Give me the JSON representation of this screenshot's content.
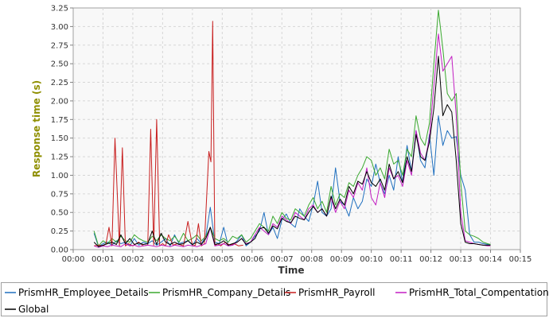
{
  "chart_data": {
    "type": "line",
    "title": "",
    "xlabel": "Time",
    "ylabel": "Response time (s)",
    "ylabel_color": "#8f8f00",
    "xlim": [
      0,
      15
    ],
    "ylim": [
      0,
      3.25
    ],
    "x_unit": "minutes",
    "x_ticks": [
      "00:00",
      "00:01",
      "00:02",
      "00:03",
      "00:04",
      "00:05",
      "00:06",
      "00:07",
      "00:08",
      "00:09",
      "00:10",
      "00:11",
      "00:12",
      "00:13",
      "00:14",
      "00:15"
    ],
    "y_ticks": [
      "0.00",
      "0.25",
      "0.50",
      "0.75",
      "1.00",
      "1.25",
      "1.50",
      "1.75",
      "2.00",
      "2.25",
      "2.50",
      "2.75",
      "3.00",
      "3.25"
    ],
    "grid": true,
    "legend_position": "bottom",
    "series": [
      {
        "name": "PrismHR_Employee_Details",
        "color": "#1f6fbf",
        "x": [
          0.7,
          0.85,
          1.0,
          1.15,
          1.3,
          1.45,
          1.6,
          1.75,
          1.9,
          2.05,
          2.2,
          2.35,
          2.5,
          2.65,
          2.8,
          2.95,
          3.1,
          3.25,
          3.4,
          3.55,
          3.7,
          3.85,
          4.0,
          4.15,
          4.3,
          4.45,
          4.6,
          4.75,
          4.9,
          5.05,
          5.2,
          5.35,
          5.5,
          5.65,
          5.8,
          5.95,
          6.1,
          6.25,
          6.4,
          6.55,
          6.7,
          6.85,
          7.0,
          7.15,
          7.3,
          7.45,
          7.6,
          7.75,
          7.9,
          8.05,
          8.2,
          8.35,
          8.5,
          8.65,
          8.8,
          8.95,
          9.1,
          9.25,
          9.4,
          9.55,
          9.7,
          9.85,
          10.0,
          10.15,
          10.3,
          10.45,
          10.6,
          10.75,
          10.9,
          11.05,
          11.2,
          11.35,
          11.5,
          11.65,
          11.8,
          11.95,
          12.1,
          12.25,
          12.4,
          12.55,
          12.7,
          12.85,
          13.0,
          13.15,
          13.3,
          13.45,
          13.6,
          13.75,
          13.9,
          14.0
        ],
        "y": [
          0.22,
          0.04,
          0.08,
          0.1,
          0.06,
          0.12,
          0.08,
          0.1,
          0.05,
          0.15,
          0.06,
          0.1,
          0.08,
          0.12,
          0.06,
          0.1,
          0.15,
          0.05,
          0.2,
          0.08,
          0.1,
          0.12,
          0.06,
          0.15,
          0.08,
          0.18,
          0.57,
          0.1,
          0.08,
          0.3,
          0.05,
          0.06,
          0.12,
          0.2,
          0.05,
          0.1,
          0.18,
          0.25,
          0.5,
          0.2,
          0.3,
          0.15,
          0.4,
          0.48,
          0.35,
          0.3,
          0.55,
          0.45,
          0.38,
          0.6,
          0.92,
          0.5,
          0.45,
          0.55,
          1.1,
          0.65,
          0.6,
          0.45,
          0.7,
          0.55,
          0.65,
          0.95,
          0.85,
          1.15,
          0.9,
          0.75,
          1.0,
          0.8,
          1.25,
          0.9,
          1.4,
          1.05,
          1.6,
          1.2,
          1.1,
          1.55,
          1.0,
          1.8,
          1.4,
          1.6,
          1.5,
          1.52,
          1.0,
          0.8,
          0.2,
          0.1,
          0.1,
          0.08,
          0.07,
          0.07
        ]
      },
      {
        "name": "PrismHR_Company_Details",
        "color": "#3aa82f",
        "x": [
          0.7,
          0.85,
          1.0,
          1.15,
          1.3,
          1.45,
          1.6,
          1.75,
          1.9,
          2.05,
          2.2,
          2.35,
          2.5,
          2.65,
          2.8,
          2.95,
          3.1,
          3.25,
          3.4,
          3.55,
          3.7,
          3.85,
          4.0,
          4.15,
          4.3,
          4.45,
          4.6,
          4.75,
          4.9,
          5.05,
          5.2,
          5.35,
          5.5,
          5.65,
          5.8,
          5.95,
          6.1,
          6.25,
          6.4,
          6.55,
          6.7,
          6.85,
          7.0,
          7.15,
          7.3,
          7.45,
          7.6,
          7.75,
          7.9,
          8.05,
          8.2,
          8.35,
          8.5,
          8.65,
          8.8,
          8.95,
          9.1,
          9.25,
          9.4,
          9.55,
          9.7,
          9.85,
          10.0,
          10.15,
          10.3,
          10.45,
          10.6,
          10.75,
          10.9,
          11.05,
          11.2,
          11.35,
          11.5,
          11.65,
          11.8,
          11.95,
          12.1,
          12.25,
          12.4,
          12.55,
          12.7,
          12.85,
          13.0,
          13.15,
          13.3,
          13.45,
          13.6,
          13.75,
          13.9,
          14.0
        ],
        "y": [
          0.25,
          0.05,
          0.12,
          0.08,
          0.15,
          0.1,
          0.18,
          0.12,
          0.1,
          0.2,
          0.15,
          0.12,
          0.1,
          0.18,
          0.12,
          0.2,
          0.15,
          0.12,
          0.18,
          0.1,
          0.22,
          0.12,
          0.15,
          0.2,
          0.12,
          0.18,
          0.3,
          0.15,
          0.12,
          0.15,
          0.1,
          0.18,
          0.15,
          0.2,
          0.1,
          0.15,
          0.25,
          0.35,
          0.3,
          0.25,
          0.45,
          0.35,
          0.5,
          0.42,
          0.4,
          0.55,
          0.5,
          0.45,
          0.6,
          0.7,
          0.55,
          0.65,
          0.5,
          0.85,
          0.6,
          0.75,
          0.7,
          0.9,
          0.85,
          1.0,
          1.1,
          1.25,
          1.2,
          1.0,
          1.1,
          0.95,
          1.35,
          1.15,
          1.2,
          1.0,
          1.35,
          1.25,
          1.8,
          1.5,
          1.4,
          1.7,
          2.5,
          3.22,
          2.7,
          2.1,
          2.0,
          2.1,
          0.9,
          0.25,
          0.2,
          0.18,
          0.15,
          0.1,
          0.08,
          0.07
        ]
      },
      {
        "name": "PrismHR_Payroll",
        "color": "#c81e1e",
        "x": [
          0.7,
          0.85,
          1.0,
          1.1,
          1.2,
          1.3,
          1.4,
          1.55,
          1.65,
          1.75,
          1.85,
          2.0,
          2.2,
          2.35,
          2.5,
          2.6,
          2.7,
          2.8,
          2.9,
          3.0,
          3.1,
          3.2,
          3.35,
          3.5,
          3.7,
          3.85,
          4.0,
          4.1,
          4.2,
          4.3,
          4.4,
          4.55,
          4.62,
          4.68,
          4.75,
          4.85,
          4.95,
          5.1,
          5.25,
          5.4,
          5.55,
          5.7
        ],
        "y": [
          0.05,
          0.06,
          0.05,
          0.08,
          0.3,
          0.05,
          1.5,
          0.05,
          1.37,
          0.05,
          0.08,
          0.05,
          0.1,
          0.05,
          0.06,
          1.62,
          0.06,
          1.75,
          0.05,
          0.08,
          0.05,
          0.2,
          0.06,
          0.08,
          0.05,
          0.38,
          0.05,
          0.06,
          0.35,
          0.05,
          0.08,
          1.32,
          1.18,
          3.07,
          0.05,
          0.08,
          0.05,
          0.1,
          0.06,
          0.08,
          0.05,
          0.06
        ]
      },
      {
        "name": "PrismHR_Total_Compentation",
        "color": "#c21ec2",
        "x": [
          0.7,
          0.85,
          1.0,
          1.15,
          1.3,
          1.45,
          1.6,
          1.75,
          1.9,
          2.05,
          2.2,
          2.35,
          2.5,
          2.65,
          2.8,
          2.95,
          3.1,
          3.25,
          3.4,
          3.55,
          3.7,
          3.85,
          4.0,
          4.15,
          4.3,
          4.45,
          4.6,
          4.75,
          4.9,
          5.05,
          5.2,
          5.35,
          5.5,
          5.65,
          5.8,
          5.95,
          6.1,
          6.25,
          6.4,
          6.55,
          6.7,
          6.85,
          7.0,
          7.15,
          7.3,
          7.45,
          7.6,
          7.75,
          7.9,
          8.05,
          8.2,
          8.35,
          8.5,
          8.65,
          8.8,
          8.95,
          9.1,
          9.25,
          9.4,
          9.55,
          9.7,
          9.85,
          10.0,
          10.15,
          10.3,
          10.45,
          10.6,
          10.75,
          10.9,
          11.05,
          11.2,
          11.35,
          11.5,
          11.65,
          11.8,
          11.95,
          12.1,
          12.25,
          12.4,
          12.55,
          12.7,
          12.85,
          13.0,
          13.15,
          13.3,
          13.45,
          13.6,
          13.75,
          13.9,
          14.0
        ],
        "y": [
          0.05,
          0.03,
          0.05,
          0.04,
          0.06,
          0.05,
          0.04,
          0.08,
          0.05,
          0.06,
          0.04,
          0.05,
          0.06,
          0.05,
          0.04,
          0.06,
          0.05,
          0.04,
          0.06,
          0.05,
          0.04,
          0.06,
          0.05,
          0.04,
          0.06,
          0.08,
          0.3,
          0.05,
          0.06,
          0.08,
          0.05,
          0.06,
          0.1,
          0.15,
          0.08,
          0.1,
          0.2,
          0.3,
          0.25,
          0.2,
          0.35,
          0.3,
          0.45,
          0.4,
          0.35,
          0.5,
          0.45,
          0.4,
          0.55,
          0.6,
          0.5,
          0.55,
          0.45,
          0.7,
          0.5,
          0.65,
          0.55,
          0.8,
          0.7,
          0.9,
          0.8,
          1.1,
          0.7,
          0.6,
          0.9,
          0.7,
          1.1,
          0.95,
          1.0,
          0.85,
          1.2,
          1.0,
          1.6,
          1.3,
          1.2,
          1.5,
          2.2,
          2.9,
          2.4,
          2.5,
          2.6,
          1.8,
          0.5,
          0.12,
          0.1,
          0.08,
          0.07,
          0.06,
          0.05,
          0.05
        ]
      },
      {
        "name": "Global",
        "color": "#000000",
        "x": [
          0.7,
          0.85,
          1.0,
          1.15,
          1.3,
          1.45,
          1.6,
          1.75,
          1.9,
          2.05,
          2.2,
          2.35,
          2.5,
          2.65,
          2.8,
          2.95,
          3.1,
          3.25,
          3.4,
          3.55,
          3.7,
          3.85,
          4.0,
          4.15,
          4.3,
          4.45,
          4.6,
          4.75,
          4.9,
          5.05,
          5.2,
          5.35,
          5.5,
          5.65,
          5.8,
          5.95,
          6.1,
          6.25,
          6.4,
          6.55,
          6.7,
          6.85,
          7.0,
          7.15,
          7.3,
          7.45,
          7.6,
          7.75,
          7.9,
          8.05,
          8.2,
          8.35,
          8.5,
          8.65,
          8.8,
          8.95,
          9.1,
          9.25,
          9.4,
          9.55,
          9.7,
          9.85,
          10.0,
          10.15,
          10.3,
          10.45,
          10.6,
          10.75,
          10.9,
          11.05,
          11.2,
          11.35,
          11.5,
          11.65,
          11.8,
          11.95,
          12.1,
          12.25,
          12.4,
          12.55,
          12.7,
          12.85,
          13.0,
          13.15,
          13.3,
          13.45,
          13.6,
          13.75,
          13.9,
          14.0
        ],
        "y": [
          0.1,
          0.04,
          0.06,
          0.08,
          0.1,
          0.07,
          0.2,
          0.08,
          0.15,
          0.07,
          0.09,
          0.07,
          0.08,
          0.25,
          0.07,
          0.22,
          0.1,
          0.07,
          0.1,
          0.07,
          0.08,
          0.12,
          0.07,
          0.1,
          0.07,
          0.15,
          0.3,
          0.07,
          0.08,
          0.12,
          0.06,
          0.08,
          0.1,
          0.15,
          0.07,
          0.1,
          0.15,
          0.28,
          0.3,
          0.22,
          0.32,
          0.28,
          0.42,
          0.38,
          0.36,
          0.45,
          0.42,
          0.4,
          0.5,
          0.58,
          0.5,
          0.55,
          0.45,
          0.72,
          0.55,
          0.68,
          0.6,
          0.85,
          0.75,
          0.92,
          0.88,
          1.05,
          0.9,
          0.85,
          0.95,
          0.8,
          1.15,
          0.95,
          1.05,
          0.9,
          1.25,
          1.05,
          1.55,
          1.25,
          1.2,
          1.45,
          1.9,
          2.6,
          1.8,
          1.95,
          1.85,
          1.2,
          0.35,
          0.1,
          0.08,
          0.08,
          0.07,
          0.06,
          0.06,
          0.06
        ]
      }
    ]
  }
}
